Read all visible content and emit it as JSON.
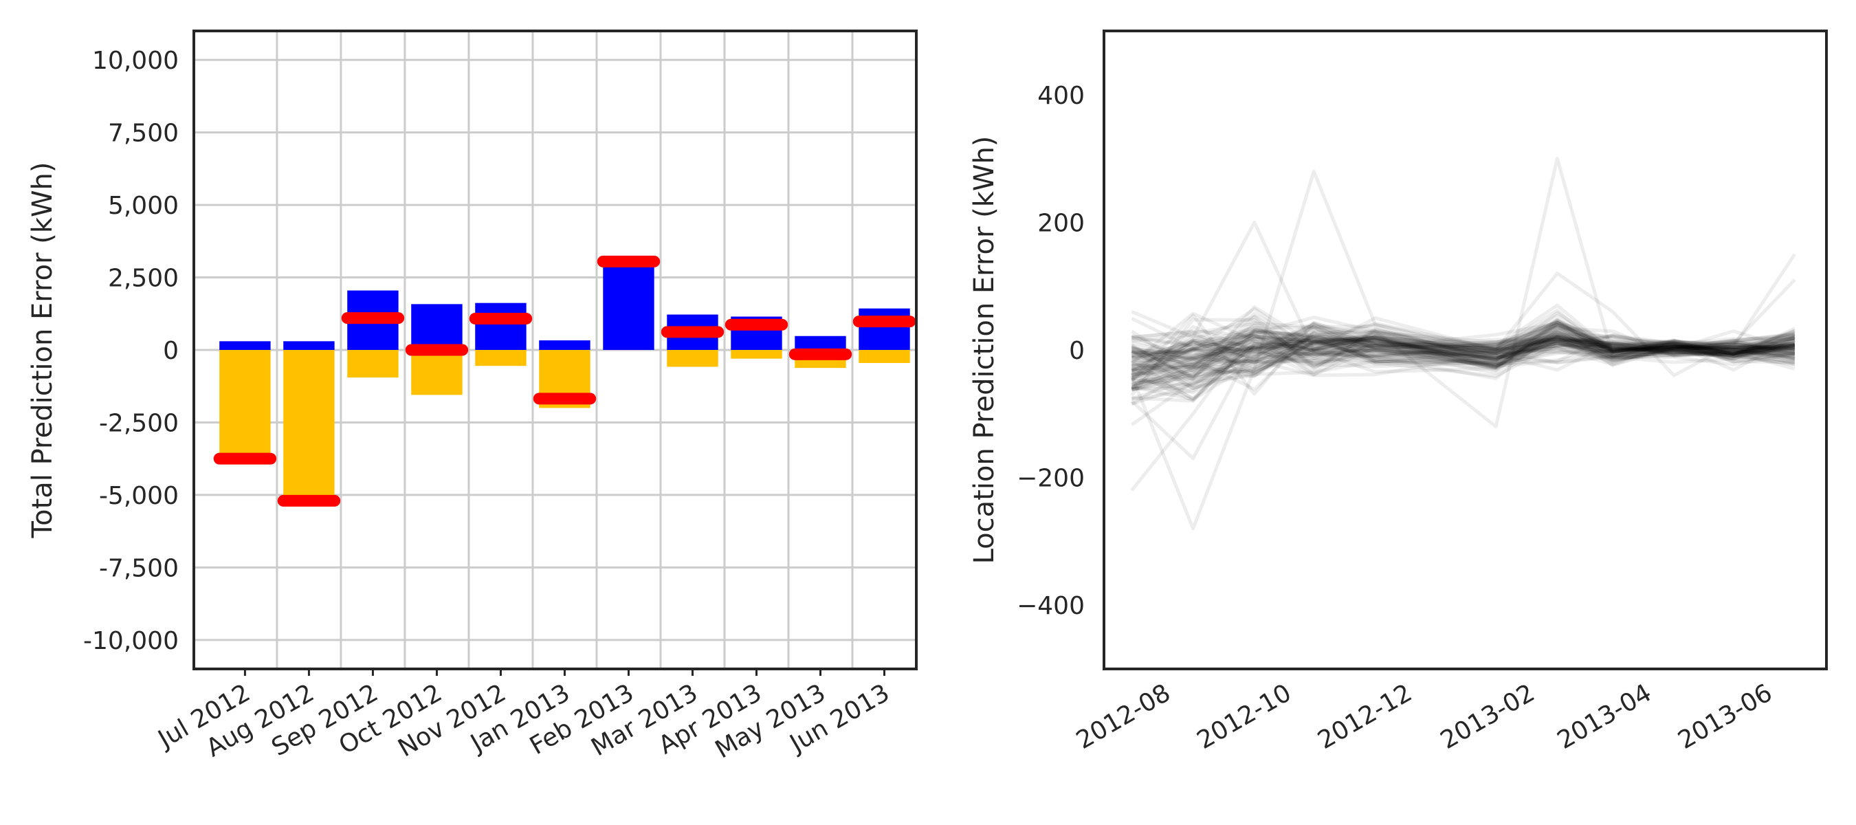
{
  "chart_data": [
    {
      "type": "bar",
      "ylabel": "Total Prediction Error (kWh)",
      "xlabel": "",
      "ylim": [
        -11000,
        11000
      ],
      "yticks": [
        -10000,
        -7500,
        -5000,
        -2500,
        0,
        2500,
        5000,
        7500,
        10000
      ],
      "ytick_labels": [
        "-10,000",
        "-7,500",
        "-5,000",
        "-2,500",
        "0",
        "2,500",
        "5,000",
        "7,500",
        "10,000"
      ],
      "grid": true,
      "categories": [
        "Jul 2012",
        "Aug 2012",
        "Sep 2012",
        "Oct 2012",
        "Nov 2012",
        "Jan 2013",
        "Feb 2013",
        "Mar 2013",
        "Apr 2013",
        "May 2013",
        "Jun 2013"
      ],
      "series": [
        {
          "values": [
            300,
            300,
            2050,
            1580,
            1620,
            330,
            3050,
            1220,
            1150,
            480,
            1430
          ],
          "color": "#0000ff",
          "style": "bar"
        },
        {
          "values": [
            -3850,
            -5300,
            -950,
            -1550,
            -550,
            -2000,
            0,
            -580,
            -300,
            -620,
            -450
          ],
          "color": "#ffc000",
          "style": "bar"
        },
        {
          "values": [
            -3750,
            -5200,
            1100,
            0,
            1080,
            -1680,
            3050,
            620,
            870,
            -150,
            980
          ],
          "color": "#ff0000",
          "style": "marker"
        }
      ]
    },
    {
      "type": "line",
      "ylabel": "Location Prediction Error (kWh)",
      "xlabel": "",
      "ylim": [
        -500,
        500
      ],
      "yticks": [
        -400,
        -200,
        0,
        200,
        400
      ],
      "ytick_labels": [
        "−400",
        "−200",
        "0",
        "200",
        "400"
      ],
      "xlim": [
        "2012-07-01",
        "2013-07-01"
      ],
      "xticks": [
        "2012-08-01",
        "2012-10-01",
        "2012-12-01",
        "2013-02-01",
        "2013-04-01",
        "2013-06-01"
      ],
      "xtick_labels": [
        "2012-08",
        "2012-10",
        "2012-12",
        "2013-02",
        "2013-04",
        "2013-06"
      ],
      "grid": false,
      "line_color": "#000000",
      "line_opacity": 0.07,
      "x": [
        "2012-07-15",
        "2012-08-15",
        "2012-09-15",
        "2012-10-15",
        "2012-11-15",
        "2013-01-15",
        "2013-02-15",
        "2013-03-15",
        "2013-04-15",
        "2013-05-15",
        "2013-06-15"
      ],
      "series_count": 100,
      "highlight_series": [
        [
          -220,
          -100,
          30,
          20,
          10,
          -15,
          40,
          5,
          10,
          -5,
          30
        ],
        [
          -40,
          -280,
          -30,
          0,
          20,
          -20,
          30,
          0,
          5,
          -10,
          10
        ],
        [
          60,
          20,
          200,
          0,
          10,
          -5,
          20,
          10,
          0,
          5,
          150
        ],
        [
          -10,
          0,
          -30,
          280,
          40,
          0,
          10,
          0,
          10,
          0,
          20
        ],
        [
          10,
          -10,
          20,
          10,
          30,
          -120,
          300,
          -10,
          0,
          0,
          10
        ],
        [
          -80,
          -170,
          10,
          0,
          50,
          0,
          120,
          60,
          -40,
          10,
          110
        ]
      ]
    }
  ]
}
